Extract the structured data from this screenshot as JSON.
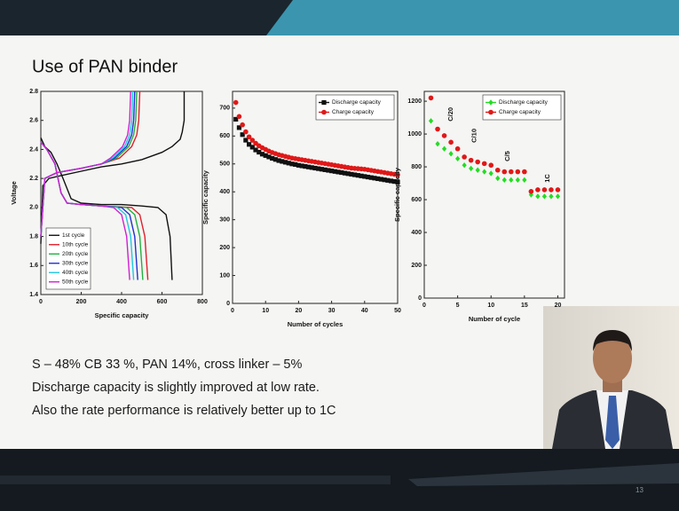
{
  "slide_title": "Use of PAN binder",
  "body_lines": [
    "S – 48% CB 33 %, PAN 14%, cross linker – 5%",
    "Discharge capacity is slightly improved at low rate.",
    "Also the rate performance is relatively better up to 1C"
  ],
  "slide_number": "13",
  "chart_data": [
    {
      "type": "line",
      "x_label": "Specific capacity",
      "y_label": "Voltage",
      "xlim": [
        0,
        800
      ],
      "xticks": [
        0,
        200,
        400,
        600,
        800
      ],
      "ylim": [
        1.4,
        2.8
      ],
      "yticks": [
        1.4,
        1.6,
        1.8,
        {
          "value": 2,
          "label": "2.0"
        },
        2.2,
        2.4,
        2.6,
        2.8
      ],
      "legend": "lower left",
      "series": [
        {
          "name": "1st cycle",
          "color": "#111111",
          "x": [
            0,
            20,
            50,
            80,
            110,
            150,
            200,
            300,
            400,
            500,
            580,
            620,
            640,
            650,
            null,
            0,
            10,
            40,
            100,
            200,
            300,
            400,
            500,
            600,
            650,
            690,
            700,
            710,
            710
          ],
          "values": [
            2.48,
            2.42,
            2.38,
            2.3,
            2.2,
            2.06,
            2.03,
            2.02,
            2.02,
            2.01,
            2.0,
            1.95,
            1.8,
            1.5,
            null,
            1.75,
            2.15,
            2.2,
            2.22,
            2.25,
            2.28,
            2.3,
            2.33,
            2.38,
            2.42,
            2.47,
            2.52,
            2.6,
            2.8
          ]
        },
        {
          "name": "10th cycle",
          "color": "#e0202a",
          "x": [
            0,
            30,
            70,
            100,
            130,
            200,
            300,
            450,
            490,
            515,
            530,
            null,
            0,
            20,
            80,
            200,
            300,
            390,
            450,
            475,
            485,
            490
          ],
          "values": [
            2.45,
            2.4,
            2.3,
            2.1,
            2.03,
            2.02,
            2.01,
            2.0,
            1.95,
            1.8,
            1.5,
            null,
            1.8,
            2.2,
            2.24,
            2.27,
            2.3,
            2.34,
            2.42,
            2.5,
            2.6,
            2.8
          ]
        },
        {
          "name": "20th cycle",
          "color": "#22b040",
          "x": [
            0,
            30,
            70,
            100,
            130,
            200,
            300,
            425,
            465,
            490,
            505,
            null,
            0,
            20,
            80,
            200,
            300,
            375,
            435,
            460,
            470,
            475
          ],
          "values": [
            2.45,
            2.4,
            2.3,
            2.1,
            2.03,
            2.02,
            2.01,
            2.0,
            1.95,
            1.8,
            1.5,
            null,
            1.8,
            2.2,
            2.24,
            2.27,
            2.3,
            2.34,
            2.42,
            2.5,
            2.6,
            2.8
          ]
        },
        {
          "name": "30th cycle",
          "color": "#2030d0",
          "x": [
            0,
            30,
            70,
            100,
            130,
            200,
            300,
            400,
            440,
            465,
            480,
            null,
            0,
            20,
            80,
            200,
            300,
            365,
            425,
            450,
            460,
            465
          ],
          "values": [
            2.45,
            2.4,
            2.3,
            2.1,
            2.03,
            2.02,
            2.01,
            2.0,
            1.95,
            1.8,
            1.5,
            null,
            1.8,
            2.2,
            2.24,
            2.27,
            2.3,
            2.34,
            2.42,
            2.5,
            2.6,
            2.8
          ]
        },
        {
          "name": "40th cycle",
          "color": "#20c8e0",
          "x": [
            0,
            30,
            70,
            100,
            130,
            200,
            300,
            380,
            420,
            445,
            460,
            null,
            0,
            20,
            80,
            200,
            300,
            355,
            415,
            440,
            450,
            455
          ],
          "values": [
            2.45,
            2.4,
            2.3,
            2.1,
            2.03,
            2.02,
            2.01,
            2.0,
            1.95,
            1.8,
            1.5,
            null,
            1.8,
            2.2,
            2.24,
            2.27,
            2.3,
            2.34,
            2.42,
            2.5,
            2.6,
            2.8
          ]
        },
        {
          "name": "50th cycle",
          "color": "#d020d0",
          "x": [
            0,
            30,
            70,
            100,
            130,
            200,
            300,
            360,
            400,
            425,
            440,
            null,
            0,
            20,
            80,
            200,
            300,
            345,
            405,
            430,
            440,
            445
          ],
          "values": [
            2.45,
            2.4,
            2.3,
            2.1,
            2.03,
            2.02,
            2.01,
            2.0,
            1.95,
            1.8,
            1.5,
            null,
            1.8,
            2.2,
            2.24,
            2.27,
            2.3,
            2.34,
            2.42,
            2.5,
            2.6,
            2.8
          ]
        }
      ]
    },
    {
      "type": "scatter",
      "x_label": "Number of cycles",
      "y_label": "Specific capacity",
      "xlim": [
        0,
        50
      ],
      "xticks": [
        0,
        10,
        20,
        30,
        40,
        50
      ],
      "ylim": [
        0,
        760
      ],
      "yticks": [
        0,
        100,
        200,
        300,
        400,
        500,
        600,
        700
      ],
      "legend": "upper right",
      "series": [
        {
          "name": "Discharge capacity",
          "color": "#111111",
          "marker": "square",
          "x": [
            1,
            2,
            3,
            4,
            5,
            6,
            7,
            8,
            9,
            10,
            11,
            12,
            13,
            14,
            15,
            16,
            17,
            18,
            19,
            20,
            21,
            22,
            23,
            24,
            25,
            26,
            27,
            28,
            29,
            30,
            31,
            32,
            33,
            34,
            35,
            36,
            37,
            38,
            39,
            40,
            41,
            42,
            43,
            44,
            45,
            46,
            47,
            48,
            49,
            50
          ],
          "values": [
            660,
            630,
            605,
            585,
            570,
            560,
            550,
            542,
            535,
            530,
            525,
            520,
            516,
            512,
            509,
            506,
            503,
            500,
            498,
            495,
            493,
            491,
            489,
            487,
            485,
            483,
            481,
            479,
            477,
            475,
            473,
            471,
            469,
            467,
            465,
            463,
            461,
            459,
            457,
            455,
            453,
            451,
            449,
            447,
            445,
            443,
            441,
            439,
            437,
            435
          ]
        },
        {
          "name": "Charge capacity",
          "color": "#e01818",
          "marker": "circle",
          "x": [
            1,
            2,
            3,
            4,
            5,
            6,
            7,
            8,
            9,
            10,
            11,
            12,
            13,
            14,
            15,
            16,
            17,
            18,
            19,
            20,
            21,
            22,
            23,
            24,
            25,
            26,
            27,
            28,
            29,
            30,
            31,
            32,
            33,
            34,
            35,
            36,
            37,
            38,
            39,
            40,
            41,
            42,
            43,
            44,
            45,
            46,
            47,
            48,
            49,
            50
          ],
          "values": [
            720,
            670,
            640,
            615,
            597,
            585,
            574,
            565,
            558,
            552,
            546,
            541,
            537,
            533,
            530,
            527,
            524,
            521,
            519,
            517,
            515,
            513,
            511,
            509,
            507,
            505,
            503,
            501,
            499,
            497,
            495,
            493,
            491,
            489,
            487,
            485,
            484,
            483,
            482,
            481,
            479,
            477,
            475,
            473,
            471,
            469,
            467,
            465,
            463,
            461
          ]
        }
      ]
    },
    {
      "type": "scatter",
      "x_label": "Number of cycle",
      "y_label": "Specific capacity",
      "xlim": [
        0,
        21
      ],
      "xticks": [
        0,
        5,
        10,
        15,
        20
      ],
      "ylim": [
        0,
        1260
      ],
      "yticks": [
        0,
        200,
        400,
        600,
        800,
        1000,
        1200
      ],
      "legend": "upper right",
      "annotations": [
        "C/20",
        "C/10",
        "C/5",
        "1C"
      ],
      "series": [
        {
          "name": "Discharge capacity",
          "color": "#22dd22",
          "marker": "diamond",
          "x": [
            1,
            2,
            3,
            4,
            5,
            6,
            7,
            8,
            9,
            10,
            11,
            12,
            13,
            14,
            15,
            16,
            17,
            18,
            19,
            20
          ],
          "values": [
            1080,
            940,
            910,
            880,
            850,
            810,
            790,
            780,
            770,
            760,
            730,
            720,
            720,
            720,
            720,
            630,
            620,
            620,
            620,
            620
          ]
        },
        {
          "name": "Charge capacity",
          "color": "#e01818",
          "marker": "circle",
          "x": [
            1,
            2,
            3,
            4,
            5,
            6,
            7,
            8,
            9,
            10,
            11,
            12,
            13,
            14,
            15,
            16,
            17,
            18,
            19,
            20
          ],
          "values": [
            1220,
            1030,
            990,
            950,
            910,
            860,
            840,
            830,
            820,
            810,
            780,
            770,
            770,
            770,
            770,
            650,
            660,
            660,
            660,
            660
          ]
        }
      ]
    }
  ]
}
